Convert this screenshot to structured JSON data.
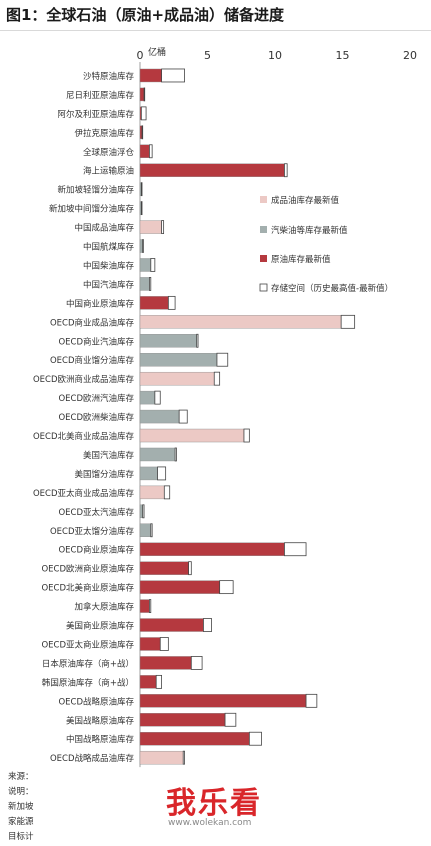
{
  "page": {
    "title": "图1：全球石油（原油+成品油）储备进度",
    "unit": "亿桶",
    "watermark": "我乐看",
    "watermark_url": "www.wolekan.com"
  },
  "footnotes": [
    "来源：",
    "说明：",
    "新加坡",
    "家能源",
    "目标计"
  ],
  "colors": {
    "crude": "#b5393f",
    "product": "#ecc9c5",
    "gasoil": "#a3afae",
    "space_border": "#444444",
    "space_fill": "#ffffff"
  },
  "chart_data": {
    "type": "bar",
    "orientation": "horizontal",
    "stacked": true,
    "xlim": [
      0,
      20
    ],
    "xticks": [
      0,
      5,
      10,
      15,
      20
    ],
    "xlabel": "亿桶",
    "legend_position": "right-middle",
    "legend": [
      {
        "key": "product",
        "label": "成品油库存最新值"
      },
      {
        "key": "gasoil",
        "label": "汽柴油等库存最新值"
      },
      {
        "key": "crude",
        "label": "原油库存最新值"
      },
      {
        "key": "space",
        "label": "存储空间（历史最高值-最新值）"
      }
    ],
    "categories": [
      "沙特原油库存",
      "尼日利亚原油库存",
      "阿尔及利亚原油库存",
      "伊拉克原油库存",
      "全球原油浮仓",
      "海上运输原油",
      "新加坡轻馏分油库存",
      "新加坡中间馏分油库存",
      "中国成品油库存",
      "中国航煤库存",
      "中国柴油库存",
      "中国汽油库存",
      "中国商业原油库存",
      "OECD商业成品油库存",
      "OECD商业汽油库存",
      "OECD商业馏分油库存",
      "OECD欧洲商业成品油库存",
      "OECD欧洲汽油库存",
      "OECD欧洲柴油库存",
      "OECD北美商业成品油库存",
      "美国汽油库存",
      "美国馏分油库存",
      "OECD亚太商业成品油库存",
      "OECD亚太汽油库存",
      "OECD亚太馏分油库存",
      "OECD商业原油库存",
      "OECD欧洲商业原油库存",
      "OECD北美商业原油库存",
      "加拿大原油库存",
      "美国商业原油库存",
      "OECD亚太商业原油库存",
      "日本原油库存（商+战）",
      "韩国原油库存（商+战）",
      "OECD战略原油库存",
      "美国战略原油库存",
      "中国战略原油库存",
      "OECD战略成品油库存"
    ],
    "series_type": [
      "crude",
      "crude",
      "crude",
      "crude",
      "crude",
      "crude",
      "gasoil",
      "gasoil",
      "product",
      "gasoil",
      "gasoil",
      "gasoil",
      "crude",
      "product",
      "gasoil",
      "gasoil",
      "product",
      "gasoil",
      "gasoil",
      "product",
      "gasoil",
      "gasoil",
      "product",
      "gasoil",
      "gasoil",
      "crude",
      "crude",
      "crude",
      "crude",
      "crude",
      "crude",
      "crude",
      "crude",
      "crude",
      "crude",
      "crude",
      "product"
    ],
    "series": [
      {
        "name": "最新值",
        "values": [
          1.6,
          0.3,
          0.1,
          0.15,
          0.7,
          10.7,
          0.1,
          0.1,
          1.6,
          0.2,
          0.8,
          0.7,
          2.1,
          14.9,
          4.2,
          5.7,
          5.5,
          1.1,
          2.9,
          7.7,
          2.6,
          1.3,
          1.8,
          0.2,
          0.8,
          10.7,
          3.6,
          5.9,
          0.7,
          4.7,
          1.5,
          3.8,
          1.2,
          12.3,
          6.3,
          8.1,
          3.2
        ]
      },
      {
        "name": "存储空间",
        "values": [
          1.7,
          0.05,
          0.35,
          0.05,
          0.2,
          0.2,
          0.05,
          0.05,
          0.15,
          0.05,
          0.3,
          0.1,
          0.5,
          1.0,
          0.1,
          0.8,
          0.4,
          0.4,
          0.6,
          0.4,
          0.1,
          0.6,
          0.4,
          0.1,
          0.1,
          1.6,
          0.2,
          1.0,
          0.1,
          0.6,
          0.6,
          0.8,
          0.4,
          0.8,
          0.8,
          0.9,
          0.1
        ]
      }
    ]
  }
}
